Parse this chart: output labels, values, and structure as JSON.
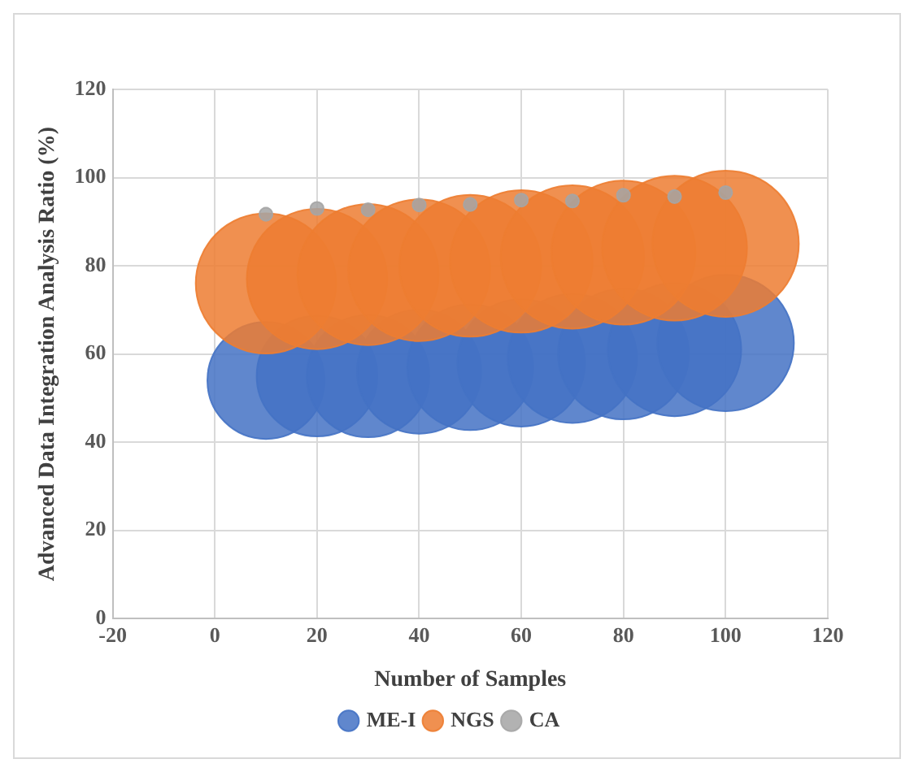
{
  "chart_data": {
    "type": "bubble",
    "xlabel": "Number of Samples",
    "ylabel": "Advanced Data Integration Analysis Ratio (%)",
    "x": [
      10,
      20,
      30,
      40,
      50,
      60,
      70,
      80,
      90,
      100
    ],
    "series": [
      {
        "name": "ME-I",
        "color": "#4472c4",
        "values": [
          54,
          55,
          55,
          56,
          57,
          58,
          59,
          60,
          61,
          62.5
        ],
        "sizes": [
          0.64,
          0.68,
          0.7,
          0.72,
          0.74,
          0.76,
          0.78,
          0.8,
          0.83,
          0.87
        ]
      },
      {
        "name": "NGS",
        "color": "#ed7d31",
        "values": [
          76,
          77,
          78,
          79,
          80,
          81,
          82,
          83,
          84,
          85
        ],
        "sizes": [
          0.92,
          0.92,
          0.93,
          0.94,
          0.94,
          0.95,
          0.96,
          0.97,
          0.98,
          1
        ]
      },
      {
        "name": "CA",
        "color": "#a5a5a5",
        "values": [
          91.7,
          93,
          92.7,
          93.8,
          93.9,
          94.9,
          94.7,
          96,
          95.7,
          96.6
        ],
        "sizes": [
          0.008,
          0.008,
          0.008,
          0.008,
          0.008,
          0.008,
          0.008,
          0.008,
          0.008,
          0.008
        ]
      }
    ],
    "xlim": [
      -20,
      120
    ],
    "xticks": [
      -20,
      0,
      20,
      40,
      60,
      80,
      100,
      120
    ],
    "ylim": [
      0,
      120
    ],
    "yticks": [
      0,
      20,
      40,
      60,
      80,
      100,
      120
    ],
    "grid": true,
    "legend": "bottom"
  }
}
